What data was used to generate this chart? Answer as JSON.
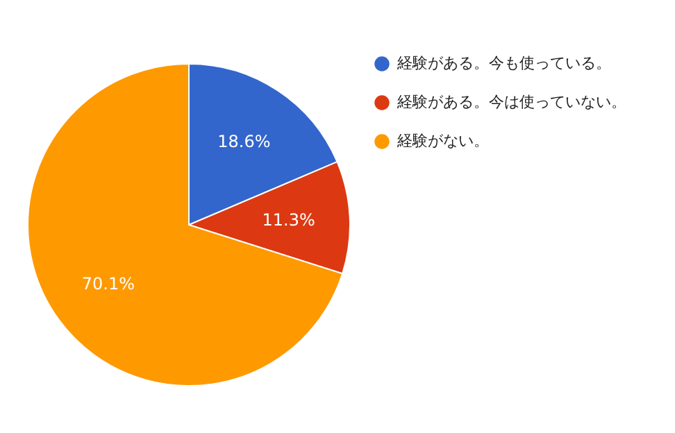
{
  "chart_data": {
    "type": "pie",
    "categories": [
      "経験がある。今も使っている。",
      "経験がある。今は使っていない。",
      "経験がない。"
    ],
    "values": [
      18.6,
      11.3,
      70.1
    ],
    "colors": [
      "#3366cc",
      "#dc3912",
      "#ff9900"
    ],
    "value_labels": [
      "18.6%",
      "11.3%",
      "70.1%"
    ],
    "legend": "right"
  }
}
